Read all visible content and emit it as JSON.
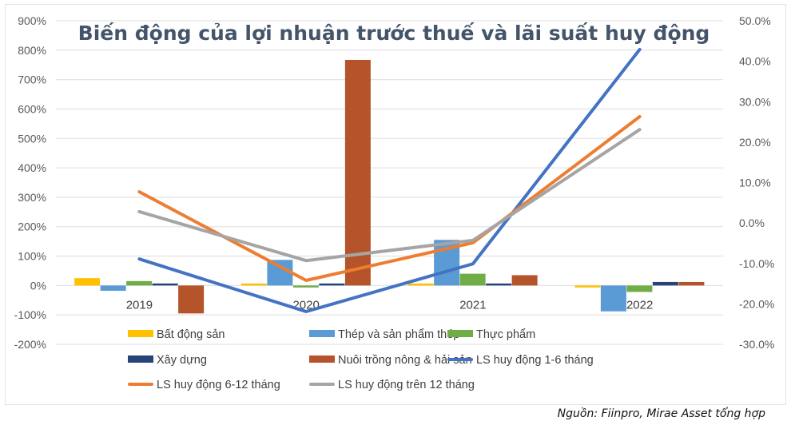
{
  "chart_data": {
    "type": "bar",
    "title": "Biến động của lợi nhuận trước thuế và lãi suất huy động",
    "categories": [
      "2019",
      "2020",
      "2021",
      "2022"
    ],
    "xlabel": "",
    "ylabel": "",
    "ylim": [
      -200,
      900
    ],
    "y_ticks": [
      "900%",
      "800%",
      "700%",
      "600%",
      "500%",
      "400%",
      "300%",
      "200%",
      "100%",
      "0%",
      "-100%",
      "-200%"
    ],
    "y2lim": [
      -30,
      50
    ],
    "y2_ticks": [
      "50.0%",
      "40.0%",
      "30.0%",
      "20.0%",
      "10.0%",
      "0.0%",
      "-10.0%",
      "-20.0%",
      "-30.0%"
    ],
    "grid": true,
    "legend_position": "bottom",
    "series": [
      {
        "name": "Bất động sản",
        "kind": "bar",
        "axis": "left",
        "color": "#ffc000",
        "values": [
          25,
          5,
          3,
          -2
        ]
      },
      {
        "name": "Thép và sản phẩm thép",
        "kind": "bar",
        "axis": "left",
        "color": "#5b9bd5",
        "values": [
          -18,
          87,
          155,
          -88
        ]
      },
      {
        "name": "Thực phẩm",
        "kind": "bar",
        "axis": "left",
        "color": "#70ad47",
        "values": [
          15,
          -5,
          40,
          -22
        ]
      },
      {
        "name": "Xây dựng",
        "kind": "bar",
        "axis": "left",
        "color": "#264478",
        "values": [
          0,
          5,
          3,
          12
        ]
      },
      {
        "name": "Nuôi trồng nông & hải sản",
        "kind": "bar",
        "axis": "left",
        "color": "#b5532a",
        "values": [
          -95,
          767,
          35,
          12
        ]
      },
      {
        "name": "LS huy động 1-6 tháng",
        "kind": "line",
        "axis": "right",
        "color": "#4472c4",
        "values": [
          -8.9,
          -21.9,
          -10.1,
          42.9
        ]
      },
      {
        "name": "LS huy động 6-12 tháng",
        "kind": "line",
        "axis": "right",
        "color": "#ed7d31",
        "values": [
          7.7,
          -14.2,
          -4.9,
          26.3
        ]
      },
      {
        "name": "LS huy động trên 12 tháng",
        "kind": "line",
        "axis": "right",
        "color": "#a5a5a5",
        "values": [
          2.8,
          -9.3,
          -4.3,
          23.1
        ]
      }
    ]
  },
  "source": "Nguồn: Fiinpro, Mirae Asset tổng hợp"
}
